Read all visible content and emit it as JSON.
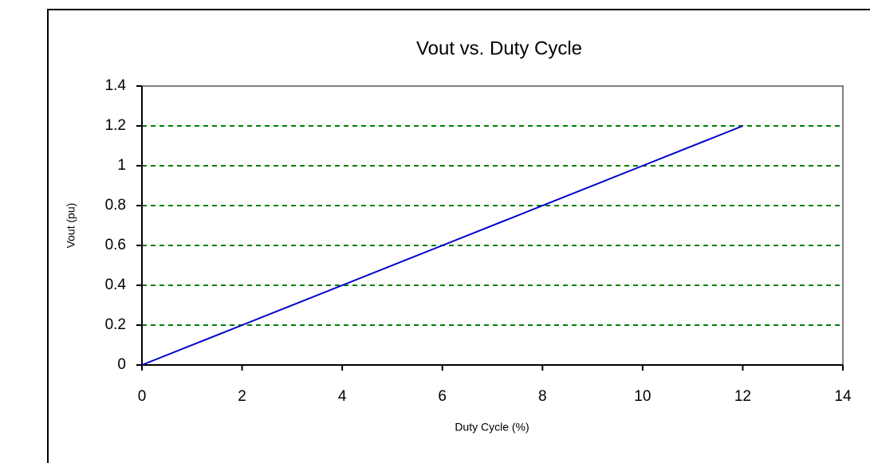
{
  "chart_data": {
    "type": "line",
    "title": "Vout vs. Duty Cycle",
    "x_label": "Duty Cycle (%)",
    "y_label": "Vout (pu)",
    "x": [
      0,
      2,
      4,
      6,
      8,
      10,
      12
    ],
    "series": [
      {
        "name": "Vout",
        "color": "#0000cc",
        "values": [
          0,
          0.2,
          0.4,
          0.6,
          0.8,
          1,
          1.2
        ]
      }
    ],
    "xlim": [
      0,
      14
    ],
    "xticks": [
      0,
      2,
      4,
      6,
      8,
      10,
      12,
      14
    ],
    "ylim": [
      0,
      1.4
    ],
    "yticks": [
      0,
      0.2,
      0.4,
      0.6,
      0.8,
      1,
      1.2,
      1.4
    ],
    "grid": true,
    "grid_color": "#008000"
  }
}
